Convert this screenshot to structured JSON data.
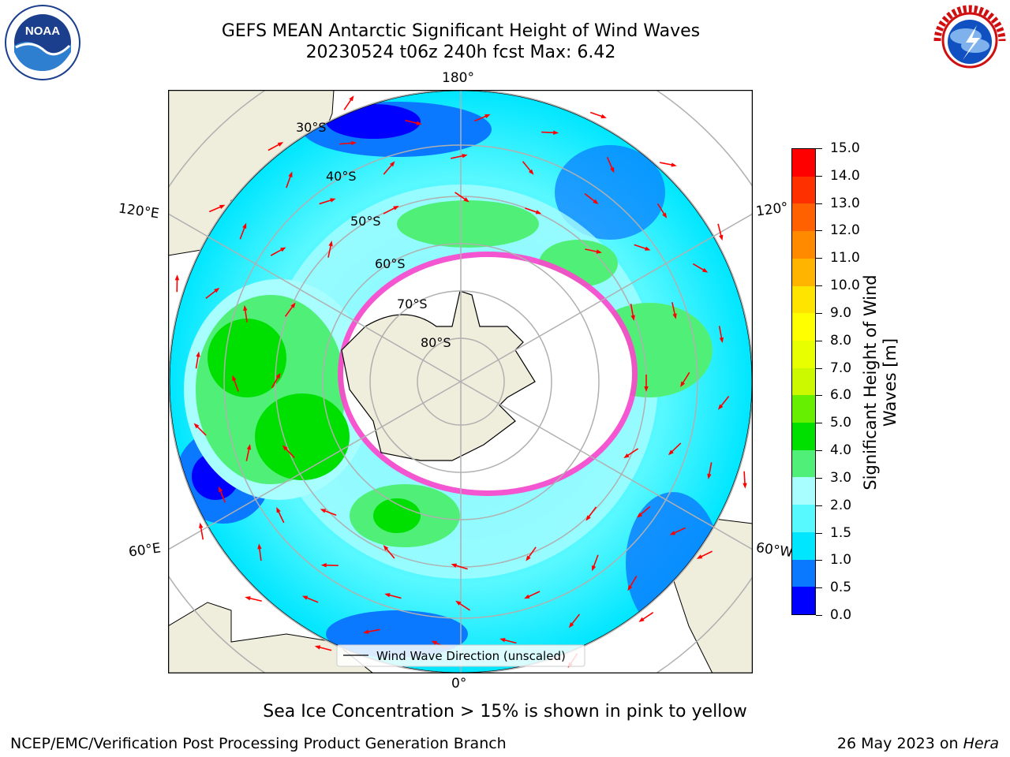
{
  "title_line1": "GEFS MEAN Antarctic Significant Height of Wind Waves",
  "title_line2": "20230524 t06z 240h fcst   Max: 6.42",
  "subtitle": "Sea Ice Concentration > 15% is shown in pink to yellow",
  "credit_left": "NCEP/EMC/Verification Post Processing Product Generation Branch",
  "credit_right_prefix": "26 May 2023 on ",
  "credit_right_host": "Hera",
  "logos": {
    "left": "NOAA",
    "right": "National Weather Service"
  },
  "map": {
    "projection": "south-polar-stereographic",
    "longitude_labels": {
      "top": "180°",
      "bottom": "0°",
      "upper_left": "120°E",
      "upper_right": "120°",
      "lower_left": "60°E",
      "lower_right": "60°W"
    },
    "latitude_labels": [
      "30°S",
      "40°S",
      "50°S",
      "60°S",
      "70°S",
      "80°S"
    ],
    "legend": "Wind Wave Direction (unscaled)",
    "colors": {
      "land": "#efeddc",
      "ice": "#ffffff",
      "sea_ice_edge": "#ff33cc",
      "arrow": "#ff0000",
      "grid": "#b0b0b0"
    }
  },
  "colorbar": {
    "label_line1": "Significant Height of Wind",
    "label_line2": "Waves [m]",
    "ticks": [
      "0.0",
      "0.5",
      "1.0",
      "1.5",
      "2.0",
      "3.0",
      "4.0",
      "5.0",
      "6.0",
      "7.0",
      "8.0",
      "9.0",
      "10.0",
      "11.0",
      "12.0",
      "13.0",
      "14.0",
      "15.0"
    ],
    "colors": [
      "#0000ff",
      "#0a78ff",
      "#00e6ff",
      "#58f8ff",
      "#a8fdff",
      "#50f078",
      "#00e000",
      "#66f000",
      "#ccf800",
      "#e8ff00",
      "#ffff00",
      "#ffe400",
      "#ffb400",
      "#ff8a00",
      "#ff6000",
      "#ff3000",
      "#ff0000"
    ]
  }
}
